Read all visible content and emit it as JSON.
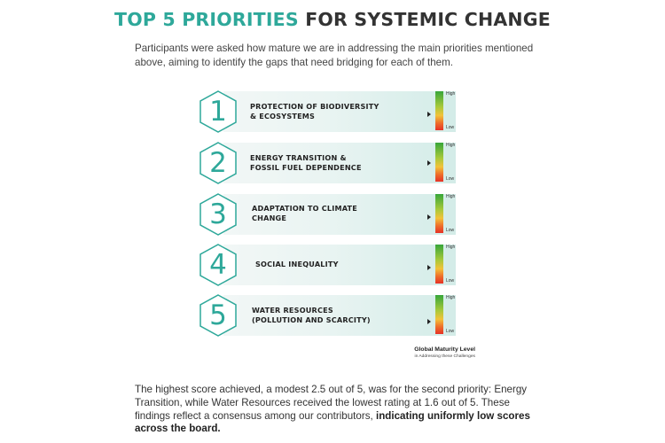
{
  "header": {
    "title_accent": "TOP 5 PRIORITIES",
    "title_rest": "FOR SYSTEMIC CHANGE"
  },
  "intro_text": "Participants were asked how mature we are in addressing the main priorities mentioned above, aiming to identify the gaps that need bridging for each of them.",
  "scale": {
    "high_label": "High",
    "low_label": "Low"
  },
  "colors": {
    "accent": "#2ea89a",
    "high": "#37a63a",
    "low": "#e53227"
  },
  "priorities": [
    {
      "number": "1",
      "label_line1": "PROTECTION OF BIODIVERSITY",
      "label_line2": "& ECOSYSTEMS",
      "maturity": 0.42
    },
    {
      "number": "2",
      "label_line1": "ENERGY TRANSITION &",
      "label_line2": "FOSSIL FUEL DEPENDENCE",
      "maturity": 0.48
    },
    {
      "number": "3",
      "label_line1": "ADAPTATION TO CLIMATE",
      "label_line2": "CHANGE",
      "maturity": 0.42
    },
    {
      "number": "4",
      "label_line1": "SOCIAL INEQUALITY",
      "label_line2": "",
      "maturity": 0.42
    },
    {
      "number": "5",
      "label_line1": "WATER RESOURCES",
      "label_line2": "(POLLUTION AND SCARCITY)",
      "maturity": 0.32
    }
  ],
  "legend": {
    "title": "Global Maturity Level",
    "subtitle": "in Addressing these Challenges"
  },
  "summary": {
    "text": "The highest score achieved, a modest 2.5 out of 5, was for the second priority: Energy Transition, while Water Resources received the lowest rating at 1.6 out of 5. These findings reflect a consensus among our contributors, ",
    "bold": "indicating uniformly low scores across the board."
  }
}
